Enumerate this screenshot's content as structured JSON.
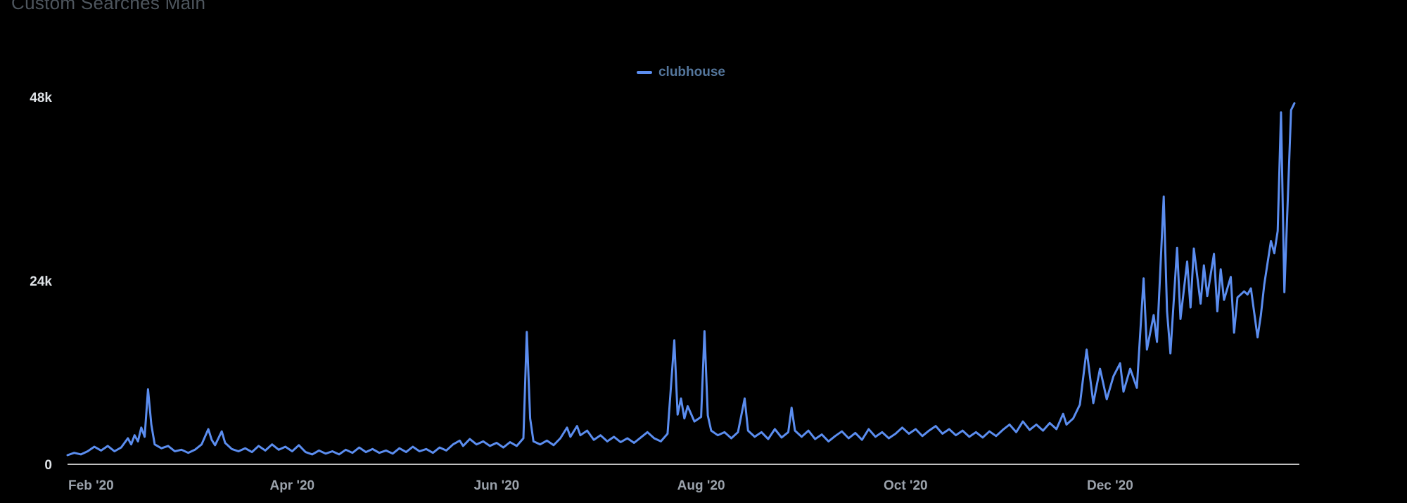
{
  "title": "Custom Searches Main",
  "colors": {
    "background": "#000000",
    "series": "#5b8def",
    "title": "#4e565e",
    "legend_label": "#54769c",
    "y_tick": "#dfe3e7",
    "x_tick": "#9ba2ab",
    "axis_line": "#ffffff"
  },
  "legend": {
    "position": "top-center",
    "items": [
      {
        "label": "clubhouse",
        "marker": "line-dash"
      }
    ]
  },
  "chart_data": {
    "type": "line",
    "title": "Custom Searches Main",
    "xlabel": "",
    "ylabel": "",
    "ylim": [
      0,
      48000
    ],
    "x_range": [
      "2020-01-25",
      "2021-01-25"
    ],
    "grid": false,
    "legend_position": "top-center",
    "yticks": [
      {
        "value": 0,
        "label": "0"
      },
      {
        "value": 24000,
        "label": "24k"
      },
      {
        "value": 48000,
        "label": "48k"
      }
    ],
    "xticks": [
      {
        "date": "2020-02-01",
        "label": "Feb '20"
      },
      {
        "date": "2020-04-01",
        "label": "Apr '20"
      },
      {
        "date": "2020-06-01",
        "label": "Jun '20"
      },
      {
        "date": "2020-08-01",
        "label": "Aug '20"
      },
      {
        "date": "2020-10-01",
        "label": "Oct '20"
      },
      {
        "date": "2020-12-01",
        "label": "Dec '20"
      }
    ],
    "series": [
      {
        "name": "clubhouse",
        "color": "#5b8def",
        "points": [
          [
            "2020-01-25",
            1200
          ],
          [
            "2020-01-27",
            1500
          ],
          [
            "2020-01-29",
            1300
          ],
          [
            "2020-01-31",
            1700
          ],
          [
            "2020-02-02",
            2300
          ],
          [
            "2020-02-04",
            1800
          ],
          [
            "2020-02-06",
            2400
          ],
          [
            "2020-02-08",
            1700
          ],
          [
            "2020-02-10",
            2200
          ],
          [
            "2020-02-12",
            3400
          ],
          [
            "2020-02-13",
            2600
          ],
          [
            "2020-02-14",
            3800
          ],
          [
            "2020-02-15",
            3000
          ],
          [
            "2020-02-16",
            4800
          ],
          [
            "2020-02-17",
            3600
          ],
          [
            "2020-02-18",
            9800
          ],
          [
            "2020-02-19",
            5200
          ],
          [
            "2020-02-20",
            2600
          ],
          [
            "2020-02-22",
            2100
          ],
          [
            "2020-02-24",
            2400
          ],
          [
            "2020-02-26",
            1700
          ],
          [
            "2020-02-28",
            1900
          ],
          [
            "2020-03-01",
            1500
          ],
          [
            "2020-03-03",
            1900
          ],
          [
            "2020-03-05",
            2600
          ],
          [
            "2020-03-07",
            4600
          ],
          [
            "2020-03-08",
            3200
          ],
          [
            "2020-03-09",
            2500
          ],
          [
            "2020-03-11",
            4300
          ],
          [
            "2020-03-12",
            2800
          ],
          [
            "2020-03-14",
            2000
          ],
          [
            "2020-03-16",
            1700
          ],
          [
            "2020-03-18",
            2100
          ],
          [
            "2020-03-20",
            1600
          ],
          [
            "2020-03-22",
            2400
          ],
          [
            "2020-03-24",
            1800
          ],
          [
            "2020-03-26",
            2600
          ],
          [
            "2020-03-28",
            1900
          ],
          [
            "2020-03-30",
            2300
          ],
          [
            "2020-04-01",
            1700
          ],
          [
            "2020-04-03",
            2500
          ],
          [
            "2020-04-05",
            1600
          ],
          [
            "2020-04-07",
            1300
          ],
          [
            "2020-04-09",
            1800
          ],
          [
            "2020-04-11",
            1400
          ],
          [
            "2020-04-13",
            1700
          ],
          [
            "2020-04-15",
            1300
          ],
          [
            "2020-04-17",
            1900
          ],
          [
            "2020-04-19",
            1500
          ],
          [
            "2020-04-21",
            2200
          ],
          [
            "2020-04-23",
            1600
          ],
          [
            "2020-04-25",
            2000
          ],
          [
            "2020-04-27",
            1500
          ],
          [
            "2020-04-29",
            1800
          ],
          [
            "2020-05-01",
            1400
          ],
          [
            "2020-05-03",
            2100
          ],
          [
            "2020-05-05",
            1600
          ],
          [
            "2020-05-07",
            2300
          ],
          [
            "2020-05-09",
            1700
          ],
          [
            "2020-05-11",
            2000
          ],
          [
            "2020-05-13",
            1500
          ],
          [
            "2020-05-15",
            2200
          ],
          [
            "2020-05-17",
            1800
          ],
          [
            "2020-05-19",
            2600
          ],
          [
            "2020-05-21",
            3100
          ],
          [
            "2020-05-22",
            2400
          ],
          [
            "2020-05-24",
            3300
          ],
          [
            "2020-05-26",
            2600
          ],
          [
            "2020-05-28",
            3000
          ],
          [
            "2020-05-30",
            2400
          ],
          [
            "2020-06-01",
            2800
          ],
          [
            "2020-06-03",
            2200
          ],
          [
            "2020-06-05",
            2900
          ],
          [
            "2020-06-07",
            2400
          ],
          [
            "2020-06-09",
            3400
          ],
          [
            "2020-06-10",
            17300
          ],
          [
            "2020-06-11",
            6000
          ],
          [
            "2020-06-12",
            3000
          ],
          [
            "2020-06-14",
            2600
          ],
          [
            "2020-06-16",
            3100
          ],
          [
            "2020-06-18",
            2500
          ],
          [
            "2020-06-20",
            3400
          ],
          [
            "2020-06-22",
            4800
          ],
          [
            "2020-06-23",
            3600
          ],
          [
            "2020-06-25",
            5000
          ],
          [
            "2020-06-26",
            3800
          ],
          [
            "2020-06-28",
            4400
          ],
          [
            "2020-06-30",
            3200
          ],
          [
            "2020-07-02",
            3800
          ],
          [
            "2020-07-04",
            3000
          ],
          [
            "2020-07-06",
            3600
          ],
          [
            "2020-07-08",
            2900
          ],
          [
            "2020-07-10",
            3400
          ],
          [
            "2020-07-12",
            2800
          ],
          [
            "2020-07-14",
            3500
          ],
          [
            "2020-07-16",
            4200
          ],
          [
            "2020-07-18",
            3400
          ],
          [
            "2020-07-20",
            3000
          ],
          [
            "2020-07-22",
            4000
          ],
          [
            "2020-07-24",
            16200
          ],
          [
            "2020-07-25",
            6500
          ],
          [
            "2020-07-26",
            8600
          ],
          [
            "2020-07-27",
            6000
          ],
          [
            "2020-07-28",
            7600
          ],
          [
            "2020-07-30",
            5600
          ],
          [
            "2020-08-01",
            6200
          ],
          [
            "2020-08-02",
            17400
          ],
          [
            "2020-08-03",
            6400
          ],
          [
            "2020-08-04",
            4400
          ],
          [
            "2020-08-06",
            3800
          ],
          [
            "2020-08-08",
            4200
          ],
          [
            "2020-08-10",
            3400
          ],
          [
            "2020-08-12",
            4200
          ],
          [
            "2020-08-14",
            8600
          ],
          [
            "2020-08-15",
            4400
          ],
          [
            "2020-08-17",
            3600
          ],
          [
            "2020-08-19",
            4200
          ],
          [
            "2020-08-21",
            3300
          ],
          [
            "2020-08-23",
            4600
          ],
          [
            "2020-08-25",
            3500
          ],
          [
            "2020-08-27",
            4200
          ],
          [
            "2020-08-28",
            7400
          ],
          [
            "2020-08-29",
            4400
          ],
          [
            "2020-08-31",
            3600
          ],
          [
            "2020-09-02",
            4400
          ],
          [
            "2020-09-04",
            3300
          ],
          [
            "2020-09-06",
            3900
          ],
          [
            "2020-09-08",
            3000
          ],
          [
            "2020-09-10",
            3700
          ],
          [
            "2020-09-12",
            4300
          ],
          [
            "2020-09-14",
            3400
          ],
          [
            "2020-09-16",
            4100
          ],
          [
            "2020-09-18",
            3200
          ],
          [
            "2020-09-20",
            4600
          ],
          [
            "2020-09-22",
            3600
          ],
          [
            "2020-09-24",
            4200
          ],
          [
            "2020-09-26",
            3400
          ],
          [
            "2020-09-28",
            4000
          ],
          [
            "2020-09-30",
            4800
          ],
          [
            "2020-10-02",
            4000
          ],
          [
            "2020-10-04",
            4600
          ],
          [
            "2020-10-06",
            3700
          ],
          [
            "2020-10-08",
            4400
          ],
          [
            "2020-10-10",
            5000
          ],
          [
            "2020-10-12",
            4000
          ],
          [
            "2020-10-14",
            4600
          ],
          [
            "2020-10-16",
            3800
          ],
          [
            "2020-10-18",
            4400
          ],
          [
            "2020-10-20",
            3600
          ],
          [
            "2020-10-22",
            4200
          ],
          [
            "2020-10-24",
            3500
          ],
          [
            "2020-10-26",
            4300
          ],
          [
            "2020-10-28",
            3700
          ],
          [
            "2020-10-30",
            4500
          ],
          [
            "2020-11-01",
            5200
          ],
          [
            "2020-11-03",
            4200
          ],
          [
            "2020-11-05",
            5600
          ],
          [
            "2020-11-07",
            4500
          ],
          [
            "2020-11-09",
            5200
          ],
          [
            "2020-11-11",
            4400
          ],
          [
            "2020-11-13",
            5400
          ],
          [
            "2020-11-15",
            4600
          ],
          [
            "2020-11-17",
            6600
          ],
          [
            "2020-11-18",
            5200
          ],
          [
            "2020-11-20",
            6000
          ],
          [
            "2020-11-22",
            7800
          ],
          [
            "2020-11-24",
            15000
          ],
          [
            "2020-11-26",
            8000
          ],
          [
            "2020-11-28",
            12500
          ],
          [
            "2020-11-30",
            8500
          ],
          [
            "2020-12-02",
            11500
          ],
          [
            "2020-12-04",
            13200
          ],
          [
            "2020-12-05",
            9500
          ],
          [
            "2020-12-07",
            12500
          ],
          [
            "2020-12-09",
            10000
          ],
          [
            "2020-12-11",
            24300
          ],
          [
            "2020-12-12",
            15000
          ],
          [
            "2020-12-14",
            19500
          ],
          [
            "2020-12-15",
            16000
          ],
          [
            "2020-12-17",
            35000
          ],
          [
            "2020-12-18",
            20000
          ],
          [
            "2020-12-19",
            14500
          ],
          [
            "2020-12-21",
            28300
          ],
          [
            "2020-12-22",
            19000
          ],
          [
            "2020-12-24",
            26500
          ],
          [
            "2020-12-25",
            20500
          ],
          [
            "2020-12-26",
            28200
          ],
          [
            "2020-12-28",
            21000
          ],
          [
            "2020-12-29",
            26000
          ],
          [
            "2020-12-30",
            22000
          ],
          [
            "2021-01-01",
            27500
          ],
          [
            "2021-01-02",
            20000
          ],
          [
            "2021-01-03",
            25500
          ],
          [
            "2021-01-04",
            21500
          ],
          [
            "2021-01-06",
            24500
          ],
          [
            "2021-01-07",
            17200
          ],
          [
            "2021-01-08",
            21800
          ],
          [
            "2021-01-10",
            22600
          ],
          [
            "2021-01-11",
            22200
          ],
          [
            "2021-01-12",
            23000
          ],
          [
            "2021-01-14",
            16600
          ],
          [
            "2021-01-15",
            19500
          ],
          [
            "2021-01-16",
            23500
          ],
          [
            "2021-01-18",
            29200
          ],
          [
            "2021-01-19",
            27600
          ],
          [
            "2021-01-20",
            30500
          ],
          [
            "2021-01-21",
            46000
          ],
          [
            "2021-01-22",
            22500
          ],
          [
            "2021-01-24",
            46300
          ],
          [
            "2021-01-25",
            47200
          ]
        ]
      }
    ]
  }
}
